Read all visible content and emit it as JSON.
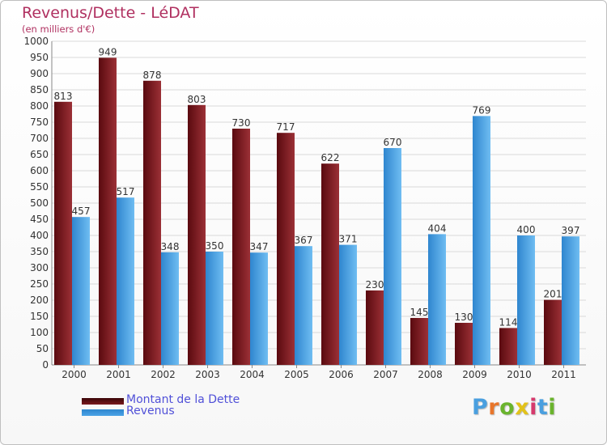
{
  "chart_data": {
    "type": "bar",
    "title": "Revenus/Dette - LéDAT",
    "subtitle": "(en milliers d'€)",
    "categories": [
      "2000",
      "2001",
      "2002",
      "2003",
      "2004",
      "2005",
      "2006",
      "2007",
      "2008",
      "2009",
      "2010",
      "2011"
    ],
    "series": [
      {
        "name": "Montant de la Dette",
        "color": "#7a1a1e",
        "values": [
          813,
          949,
          878,
          803,
          730,
          717,
          622,
          230,
          145,
          130,
          114,
          201
        ]
      },
      {
        "name": "Revenus",
        "color": "#4aa3e6",
        "values": [
          457,
          517,
          348,
          350,
          347,
          367,
          371,
          670,
          404,
          769,
          400,
          397
        ]
      }
    ],
    "yticks": [
      0,
      50,
      100,
      150,
      200,
      250,
      300,
      350,
      400,
      450,
      500,
      550,
      600,
      650,
      700,
      750,
      800,
      850,
      900,
      950,
      1000
    ],
    "ylim": [
      0,
      1000
    ],
    "grid": true,
    "legend": "bottom-left",
    "label_color": "#333333",
    "grid_color": "#d9d9d9"
  },
  "logo": {
    "letters": [
      "P",
      "r",
      "o",
      "x",
      "i",
      "t",
      "i"
    ],
    "colors": [
      "#4a9fdf",
      "#e8762b",
      "#6ab42d",
      "#e2c21a",
      "#d63a6d",
      "#4a9fdf",
      "#6ab42d"
    ]
  }
}
